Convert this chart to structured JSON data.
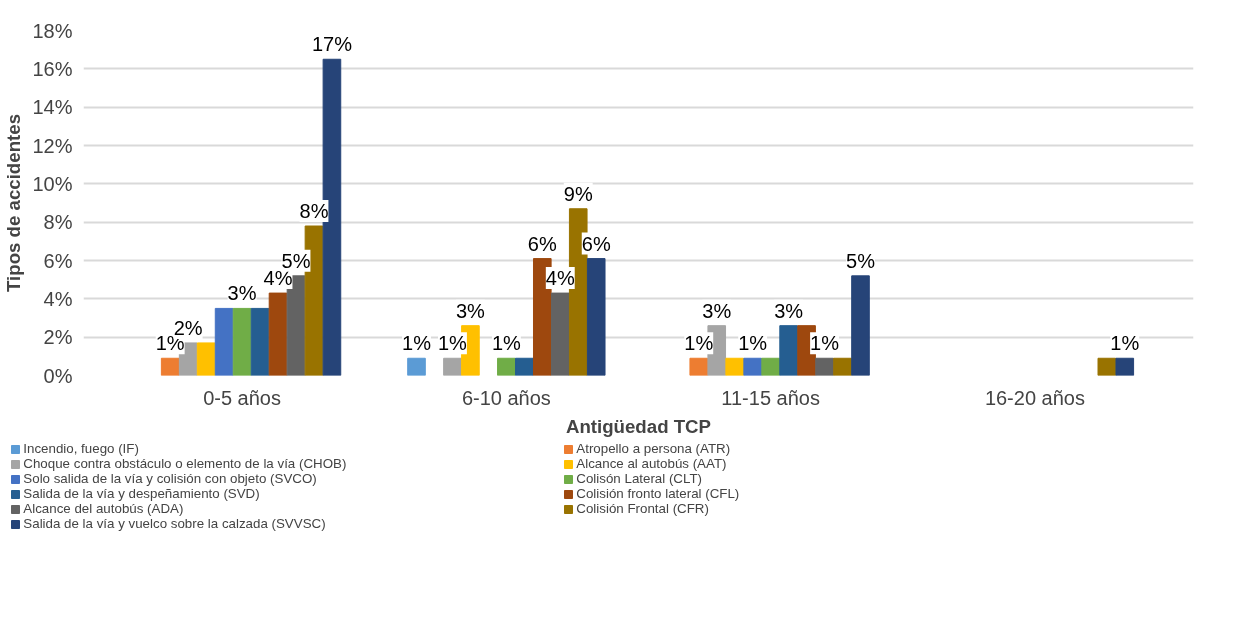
{
  "chart_data": {
    "type": "bar",
    "xlabel": "Antigüedad TCP",
    "ylabel": "Tipos de accidentes",
    "categories": [
      "0-5 años",
      "6-10 años",
      "11-15 años",
      "16-20 años"
    ],
    "ylim": [
      0,
      18
    ],
    "yticks": [
      {
        "value": 0,
        "label": "0%"
      },
      {
        "value": 2,
        "label": "2%"
      },
      {
        "value": 4,
        "label": "4%"
      },
      {
        "value": 6,
        "label": "6%"
      },
      {
        "value": 8,
        "label": "8%"
      },
      {
        "value": 10,
        "label": "10%"
      },
      {
        "value": 12,
        "label": "12%"
      },
      {
        "value": 14,
        "label": "14%"
      },
      {
        "value": 16,
        "label": "16%"
      },
      {
        "value": 18,
        "label": "18%"
      }
    ],
    "grid": "y",
    "legend": "bottom",
    "series": [
      {
        "name": "Incendio, fuego (IF)",
        "color": "#5b9bd5",
        "values": [
          null,
          0.9,
          null,
          null
        ],
        "value_labels": [
          null,
          "1%",
          null,
          null
        ]
      },
      {
        "name": "Atropello a persona (ATR)",
        "color": "#ed7d31",
        "values": [
          0.9,
          null,
          0.9,
          null
        ],
        "value_labels": [
          "1%",
          null,
          "1%",
          null
        ]
      },
      {
        "name": "Choque contra obstáculo o elemento de la vía (CHOB)",
        "color": "#a5a5a5",
        "values": [
          1.7,
          0.9,
          2.6,
          null
        ],
        "value_labels": [
          "2%",
          "1%",
          "3%",
          null
        ]
      },
      {
        "name": "Alcance al autobús (AAT)",
        "color": "#ffc000",
        "values": [
          1.7,
          2.6,
          0.9,
          null
        ],
        "value_labels": [
          null,
          "3%",
          null,
          null
        ]
      },
      {
        "name": "Solo salida de la vía y colisión con objeto (SVCO)",
        "color": "#4472c4",
        "values": [
          3.5,
          null,
          0.9,
          null
        ],
        "value_labels": [
          null,
          null,
          "1%",
          null
        ]
      },
      {
        "name": "Colisón Lateral (CLT)",
        "color": "#70ad47",
        "values": [
          3.5,
          0.9,
          0.9,
          null
        ],
        "value_labels": [
          "3%",
          "1%",
          null,
          null
        ]
      },
      {
        "name": "Salida de la vía y despeñamiento (SVD)",
        "color": "#255e91",
        "values": [
          3.5,
          0.9,
          2.6,
          null
        ],
        "value_labels": [
          null,
          null,
          "3%",
          null
        ]
      },
      {
        "name": "Colisión fronto lateral (CFL)",
        "color": "#9e480e",
        "values": [
          4.3,
          6.1,
          2.6,
          null
        ],
        "value_labels": [
          "4%",
          "6%",
          null,
          null
        ]
      },
      {
        "name": "Alcance del autobús (ADA)",
        "color": "#636363",
        "values": [
          5.2,
          4.3,
          0.9,
          null
        ],
        "value_labels": [
          "5%",
          "4%",
          "1%",
          null
        ]
      },
      {
        "name": "Colisión Frontal (CFR)",
        "color": "#997300",
        "values": [
          7.8,
          8.7,
          0.9,
          0.9
        ],
        "value_labels": [
          "8%",
          "9%",
          null,
          null
        ]
      },
      {
        "name": "Salida de la vía y vuelco sobre la calzada (SVVSC)",
        "color": "#264478",
        "values": [
          16.5,
          6.1,
          5.2,
          0.9
        ],
        "value_labels": [
          "17%",
          "6%",
          "5%",
          "1%"
        ]
      }
    ]
  }
}
